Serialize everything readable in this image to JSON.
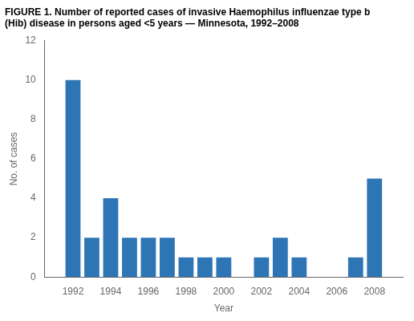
{
  "chart_data": {
    "type": "bar",
    "title": "FIGURE 1. Number of reported cases of invasive Haemophilus influenzae type b (Hib) disease in persons aged <5 years — Minnesota, 1992–2008",
    "x": [
      1992,
      1993,
      1994,
      1995,
      1996,
      1997,
      1998,
      1999,
      2000,
      2001,
      2002,
      2003,
      2004,
      2005,
      2006,
      2007,
      2008
    ],
    "values": [
      10,
      2,
      4,
      2,
      2,
      2,
      1,
      1,
      1,
      0,
      1,
      2,
      1,
      0,
      0,
      1,
      5
    ],
    "color": "#2E75B6",
    "xlabel": "Year",
    "ylabel": "No. of cases",
    "xlim": [
      1990.5,
      2009.5
    ],
    "xticks": [
      1992,
      1994,
      1996,
      1998,
      2000,
      2002,
      2004,
      2006,
      2008
    ],
    "ylim": [
      0,
      12
    ],
    "yticks": [
      0,
      2,
      4,
      6,
      8,
      10,
      12
    ],
    "grid": false
  }
}
